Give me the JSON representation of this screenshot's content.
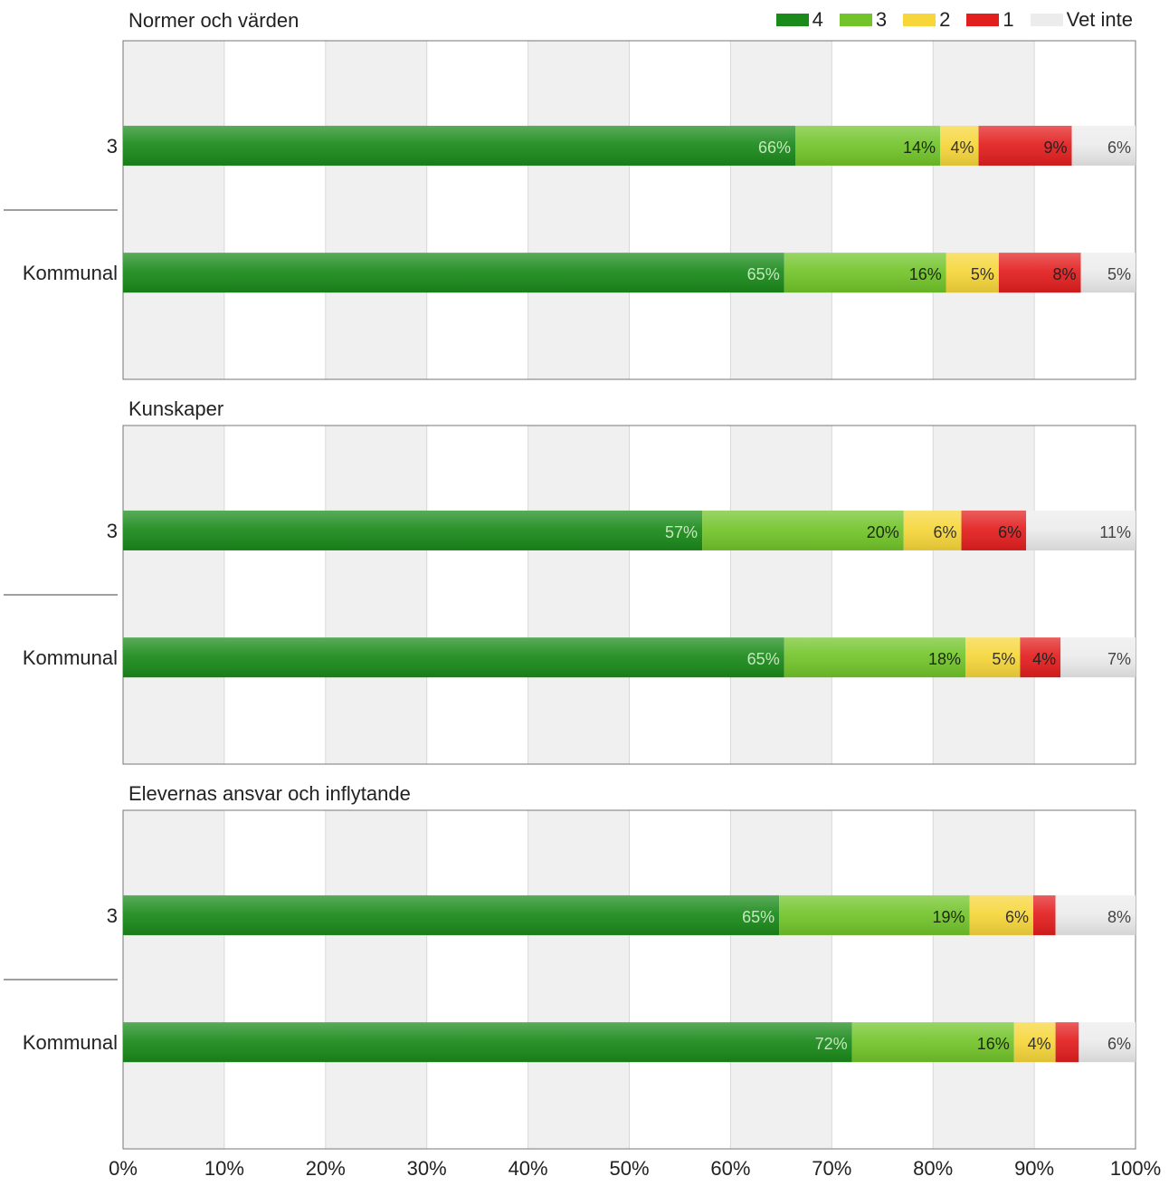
{
  "legend": [
    {
      "key": "4",
      "label": "4",
      "color": "#1a8a1a"
    },
    {
      "key": "3",
      "label": "3",
      "color": "#72c42a"
    },
    {
      "key": "2",
      "label": "2",
      "color": "#f6d63a"
    },
    {
      "key": "1",
      "label": "1",
      "color": "#e31e1e"
    },
    {
      "key": "vet_inte",
      "label": "Vet inte",
      "color": "#ececec"
    }
  ],
  "x_ticks": [
    "0%",
    "10%",
    "20%",
    "30%",
    "40%",
    "50%",
    "60%",
    "70%",
    "80%",
    "90%",
    "100%"
  ],
  "chart_data": [
    {
      "type": "bar",
      "orientation": "horizontal",
      "stacked": true,
      "title": "Normer och värden",
      "categories": [
        "3",
        "Kommunal"
      ],
      "xlim": [
        0,
        100
      ],
      "series": [
        {
          "name": "4",
          "values": [
            66.4,
            65.3
          ],
          "labels": [
            "66%",
            "65%"
          ]
        },
        {
          "name": "3",
          "values": [
            14.3,
            16.0
          ],
          "labels": [
            "14%",
            "16%"
          ]
        },
        {
          "name": "2",
          "values": [
            3.8,
            5.2
          ],
          "labels": [
            "4%",
            "5%"
          ]
        },
        {
          "name": "1",
          "values": [
            9.2,
            8.1
          ],
          "labels": [
            "9%",
            "8%"
          ]
        },
        {
          "name": "Vet inte",
          "values": [
            6.3,
            5.4
          ],
          "labels": [
            "6%",
            "5%"
          ]
        }
      ]
    },
    {
      "type": "bar",
      "orientation": "horizontal",
      "stacked": true,
      "title": "Kunskaper",
      "categories": [
        "3",
        "Kommunal"
      ],
      "xlim": [
        0,
        100
      ],
      "series": [
        {
          "name": "4",
          "values": [
            57.2,
            65.3
          ],
          "labels": [
            "57%",
            "65%"
          ]
        },
        {
          "name": "3",
          "values": [
            19.9,
            17.9
          ],
          "labels": [
            "20%",
            "18%"
          ]
        },
        {
          "name": "2",
          "values": [
            5.7,
            5.4
          ],
          "labels": [
            "6%",
            "5%"
          ]
        },
        {
          "name": "1",
          "values": [
            6.4,
            4.0
          ],
          "labels": [
            "6%",
            "4%"
          ]
        },
        {
          "name": "Vet inte",
          "values": [
            10.8,
            7.4
          ],
          "labels": [
            "11%",
            "7%"
          ]
        }
      ]
    },
    {
      "type": "bar",
      "orientation": "horizontal",
      "stacked": true,
      "title": "Elevernas ansvar och inflytande",
      "categories": [
        "3",
        "Kommunal"
      ],
      "xlim": [
        0,
        100
      ],
      "series": [
        {
          "name": "4",
          "values": [
            64.8,
            72.0
          ],
          "labels": [
            "65%",
            "72%"
          ]
        },
        {
          "name": "3",
          "values": [
            18.8,
            16.0
          ],
          "labels": [
            "19%",
            "16%"
          ]
        },
        {
          "name": "2",
          "values": [
            6.3,
            4.1
          ],
          "labels": [
            "6%",
            "4%"
          ]
        },
        {
          "name": "1",
          "values": [
            2.2,
            2.3
          ],
          "labels": [
            "",
            ""
          ]
        },
        {
          "name": "Vet inte",
          "values": [
            7.9,
            5.6
          ],
          "labels": [
            "8%",
            "6%"
          ]
        }
      ]
    }
  ]
}
